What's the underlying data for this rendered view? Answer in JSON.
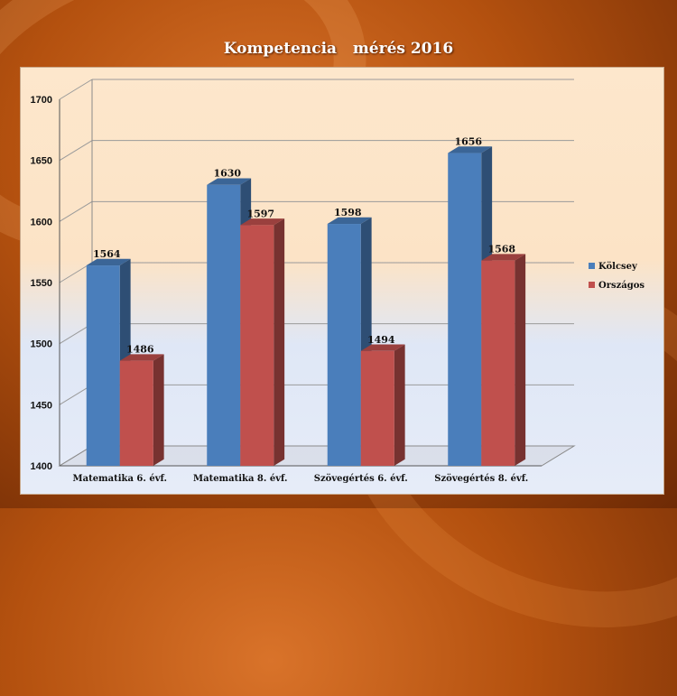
{
  "chart_data": {
    "type": "bar",
    "title": "Kompetencia   mérés 2016",
    "categories": [
      "Matematika 6. évf.",
      "Matematika 8. évf.",
      "Szövegértés 6. évf.",
      "Szövegértés 8. évf."
    ],
    "series": [
      {
        "name": "Kölcsey",
        "values": [
          1564,
          1630,
          1598,
          1656
        ],
        "color": "#4a7ebb"
      },
      {
        "name": "Országos",
        "values": [
          1486,
          1597,
          1494,
          1568
        ],
        "color": "#c0504d"
      }
    ],
    "ylim": [
      1400,
      1700
    ],
    "yticks": [
      1400,
      1450,
      1500,
      1550,
      1600,
      1650,
      1700
    ],
    "grid": true,
    "legend": "right",
    "xlabel": "",
    "ylabel": ""
  }
}
